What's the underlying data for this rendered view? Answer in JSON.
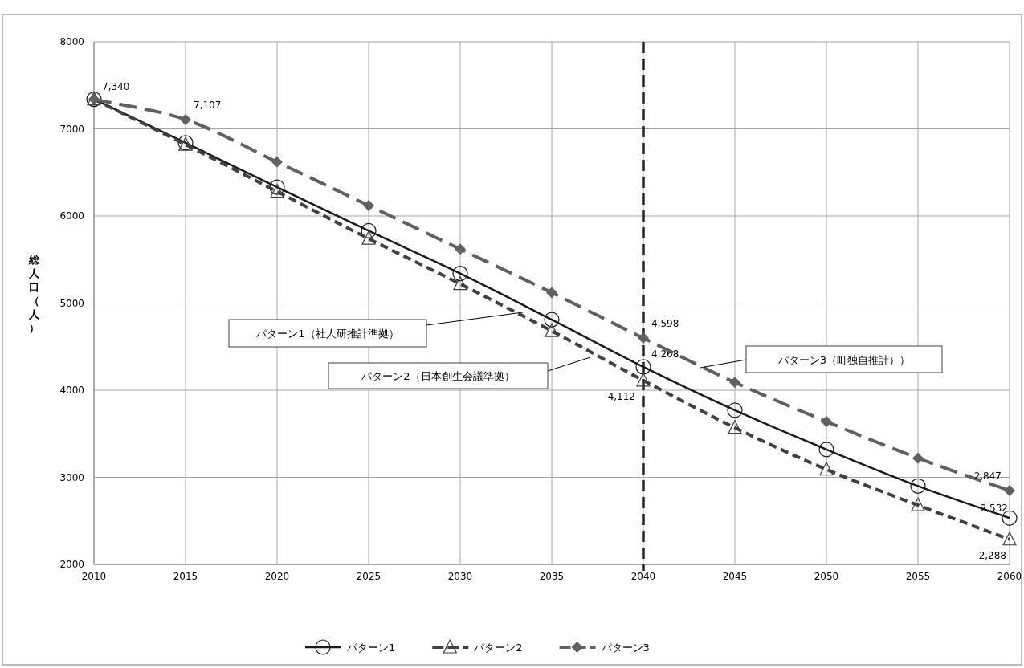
{
  "chart_data": {
    "type": "line",
    "ylabel": "総人口（人）",
    "x": [
      2010,
      2015,
      2020,
      2025,
      2030,
      2035,
      2040,
      2045,
      2050,
      2055,
      2060
    ],
    "xlim": [
      2010,
      2060
    ],
    "xticks": [
      2010,
      2015,
      2020,
      2025,
      2030,
      2035,
      2040,
      2045,
      2050,
      2055,
      2060
    ],
    "ylim": [
      2000,
      8000
    ],
    "yticks": [
      2000,
      3000,
      4000,
      5000,
      6000,
      7000,
      8000
    ],
    "grid": true,
    "legend": "bottom",
    "series": [
      {
        "name": "パターン1",
        "color": "#1a1a1a",
        "marker": "circle",
        "line_style": "solid",
        "values": [
          7340,
          6840,
          6330,
          5830,
          5340,
          4810,
          4268,
          3770,
          3320,
          2900,
          2532
        ],
        "value_labels": [
          "7,340",
          null,
          null,
          null,
          null,
          null,
          "4,268",
          null,
          null,
          null,
          "2,532"
        ]
      },
      {
        "name": "パターン2",
        "color": "#404040",
        "marker": "triangle",
        "line_style": "dashed",
        "values": [
          7340,
          6820,
          6280,
          5740,
          5220,
          4680,
          4112,
          3570,
          3090,
          2680,
          2288
        ],
        "value_labels": [
          null,
          null,
          null,
          null,
          null,
          null,
          "4,112",
          null,
          null,
          null,
          "2,288"
        ]
      },
      {
        "name": "パターン3",
        "color": "#606060",
        "marker": "diamond",
        "line_style": "dashed",
        "values": [
          7340,
          7107,
          6620,
          6120,
          5620,
          5120,
          4598,
          4090,
          3640,
          3220,
          2847
        ],
        "value_labels": [
          null,
          "7,107",
          null,
          null,
          null,
          null,
          "4,598",
          null,
          null,
          null,
          "2,847"
        ]
      }
    ],
    "ref_lines": [
      {
        "axis": "x",
        "value": 2040,
        "color": "#262626",
        "line_style": "dashed"
      }
    ],
    "annotations": [
      "パターン1（社人研推計準拠）",
      "パターン2（日本創生会議準拠）",
      "パターン3（町独自推計））"
    ]
  }
}
